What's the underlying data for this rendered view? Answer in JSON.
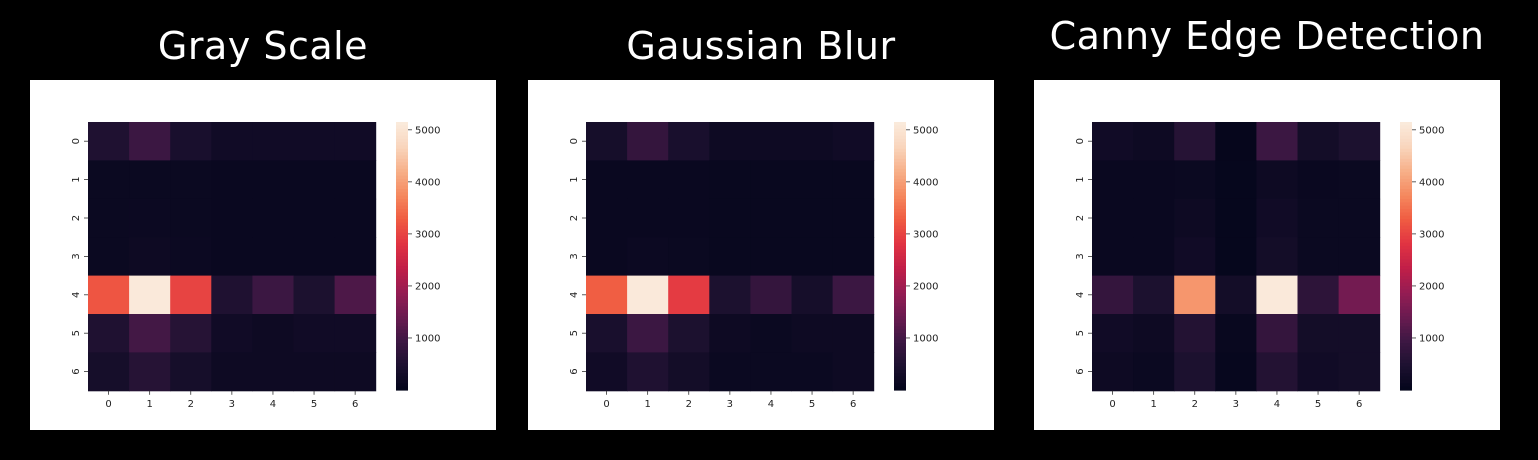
{
  "chart_data": [
    {
      "type": "heatmap",
      "title": "Gray Scale",
      "x_ticks": [
        "0",
        "1",
        "2",
        "3",
        "4",
        "5",
        "6"
      ],
      "y_ticks": [
        "0",
        "1",
        "2",
        "3",
        "4",
        "5",
        "6"
      ],
      "values": [
        [
          500,
          900,
          400,
          250,
          250,
          250,
          250
        ],
        [
          150,
          150,
          150,
          120,
          120,
          120,
          120
        ],
        [
          150,
          160,
          150,
          120,
          120,
          120,
          120
        ],
        [
          150,
          200,
          160,
          130,
          120,
          120,
          120
        ],
        [
          3200,
          5100,
          3000,
          500,
          900,
          450,
          1100
        ],
        [
          500,
          1000,
          600,
          250,
          200,
          250,
          250
        ],
        [
          350,
          600,
          350,
          200,
          200,
          200,
          200
        ]
      ],
      "colorbar_ticks": [
        "1000",
        "2000",
        "3000",
        "4000",
        "5000"
      ],
      "vmin": 0,
      "vmax": 5150
    },
    {
      "type": "heatmap",
      "title": "Gaussian Blur",
      "x_ticks": [
        "0",
        "1",
        "2",
        "3",
        "4",
        "5",
        "6"
      ],
      "y_ticks": [
        "0",
        "1",
        "2",
        "3",
        "4",
        "5",
        "6"
      ],
      "values": [
        [
          350,
          800,
          400,
          200,
          200,
          200,
          250
        ],
        [
          120,
          120,
          120,
          100,
          100,
          100,
          100
        ],
        [
          120,
          130,
          120,
          100,
          100,
          100,
          100
        ],
        [
          130,
          170,
          140,
          110,
          110,
          110,
          110
        ],
        [
          3300,
          5100,
          2900,
          450,
          800,
          350,
          900
        ],
        [
          400,
          900,
          450,
          200,
          150,
          200,
          200
        ],
        [
          250,
          500,
          300,
          150,
          150,
          150,
          200
        ]
      ],
      "colorbar_ticks": [
        "1000",
        "2000",
        "3000",
        "4000",
        "5000"
      ],
      "vmin": 0,
      "vmax": 5150
    },
    {
      "type": "heatmap",
      "title": "Canny Edge Detection",
      "x_ticks": [
        "0",
        "1",
        "2",
        "3",
        "4",
        "5",
        "6"
      ],
      "y_ticks": [
        "0",
        "1",
        "2",
        "3",
        "4",
        "5",
        "6"
      ],
      "values": [
        [
          250,
          200,
          600,
          50,
          900,
          300,
          450
        ],
        [
          120,
          120,
          150,
          60,
          200,
          120,
          150
        ],
        [
          120,
          120,
          200,
          60,
          250,
          150,
          150
        ],
        [
          120,
          120,
          250,
          60,
          300,
          150,
          150
        ],
        [
          800,
          450,
          3900,
          300,
          5100,
          700,
          1500
        ],
        [
          250,
          200,
          550,
          100,
          800,
          300,
          300
        ],
        [
          200,
          150,
          450,
          80,
          550,
          250,
          300
        ]
      ],
      "colorbar_ticks": [
        "1000",
        "2000",
        "3000",
        "4000",
        "5000"
      ],
      "vmin": 0,
      "vmax": 5150
    }
  ],
  "colors": {
    "background": "#000000",
    "panel": "#ffffff",
    "colormap": [
      "#03051a",
      "#1d1130",
      "#3d1743",
      "#6a1b50",
      "#961c53",
      "#c11f48",
      "#e13342",
      "#f05c42",
      "#f5895f",
      "#f7b18a",
      "#f9d6be",
      "#faebdd"
    ]
  }
}
